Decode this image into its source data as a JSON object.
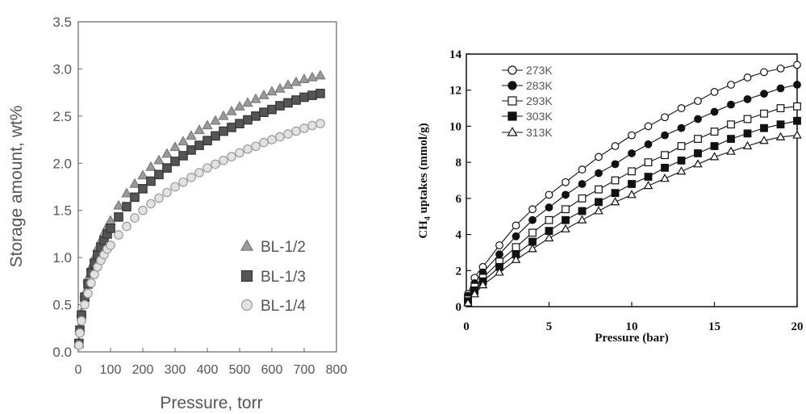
{
  "chart_data": [
    {
      "type": "scatter",
      "xlabel": "Pressure, torr",
      "ylabel": "Storage amount, wt%",
      "xlim": [
        0,
        800
      ],
      "ylim": [
        0.0,
        3.5
      ],
      "x_ticks": [
        "0",
        "100",
        "200",
        "300",
        "400",
        "500",
        "600",
        "700",
        "800"
      ],
      "y_ticks": [
        "0.0",
        "0.5",
        "1.0",
        "1.5",
        "2.0",
        "2.5",
        "3.0",
        "3.5"
      ],
      "legend_position": "bottom-right",
      "grid": false,
      "series": [
        {
          "name": "BL-1/2",
          "marker": "triangle",
          "color": "#9a9a9a",
          "points": [
            [
              2,
              0.1
            ],
            [
              5,
              0.25
            ],
            [
              10,
              0.42
            ],
            [
              20,
              0.62
            ],
            [
              30,
              0.78
            ],
            [
              40,
              0.9
            ],
            [
              50,
              1.0
            ],
            [
              60,
              1.1
            ],
            [
              70,
              1.18
            ],
            [
              80,
              1.26
            ],
            [
              90,
              1.33
            ],
            [
              100,
              1.39
            ],
            [
              125,
              1.55
            ],
            [
              150,
              1.68
            ],
            [
              175,
              1.78
            ],
            [
              200,
              1.87
            ],
            [
              225,
              1.96
            ],
            [
              250,
              2.03
            ],
            [
              275,
              2.1
            ],
            [
              300,
              2.17
            ],
            [
              325,
              2.23
            ],
            [
              350,
              2.29
            ],
            [
              375,
              2.35
            ],
            [
              400,
              2.4
            ],
            [
              425,
              2.45
            ],
            [
              450,
              2.5
            ],
            [
              475,
              2.55
            ],
            [
              500,
              2.6
            ],
            [
              525,
              2.64
            ],
            [
              550,
              2.68
            ],
            [
              575,
              2.72
            ],
            [
              600,
              2.76
            ],
            [
              625,
              2.79
            ],
            [
              650,
              2.83
            ],
            [
              675,
              2.86
            ],
            [
              700,
              2.89
            ],
            [
              725,
              2.91
            ],
            [
              750,
              2.93
            ]
          ]
        },
        {
          "name": "BL-1/3",
          "marker": "square",
          "color": "#555555",
          "points": [
            [
              2,
              0.09
            ],
            [
              5,
              0.23
            ],
            [
              10,
              0.39
            ],
            [
              20,
              0.58
            ],
            [
              30,
              0.72
            ],
            [
              40,
              0.84
            ],
            [
              50,
              0.94
            ],
            [
              60,
              1.03
            ],
            [
              70,
              1.11
            ],
            [
              80,
              1.18
            ],
            [
              90,
              1.25
            ],
            [
              100,
              1.31
            ],
            [
              125,
              1.43
            ],
            [
              150,
              1.54
            ],
            [
              175,
              1.64
            ],
            [
              200,
              1.73
            ],
            [
              225,
              1.81
            ],
            [
              250,
              1.88
            ],
            [
              275,
              1.95
            ],
            [
              300,
              2.02
            ],
            [
              325,
              2.08
            ],
            [
              350,
              2.14
            ],
            [
              375,
              2.19
            ],
            [
              400,
              2.24
            ],
            [
              425,
              2.29
            ],
            [
              450,
              2.34
            ],
            [
              475,
              2.38
            ],
            [
              500,
              2.42
            ],
            [
              525,
              2.46
            ],
            [
              550,
              2.5
            ],
            [
              575,
              2.54
            ],
            [
              600,
              2.57
            ],
            [
              625,
              2.61
            ],
            [
              650,
              2.64
            ],
            [
              675,
              2.67
            ],
            [
              700,
              2.7
            ],
            [
              725,
              2.72
            ],
            [
              750,
              2.74
            ]
          ]
        },
        {
          "name": "BL-1/4",
          "marker": "circle",
          "color": "#e2e2e2",
          "points": [
            [
              2,
              0.07
            ],
            [
              5,
              0.2
            ],
            [
              10,
              0.33
            ],
            [
              20,
              0.5
            ],
            [
              30,
              0.62
            ],
            [
              40,
              0.73
            ],
            [
              50,
              0.82
            ],
            [
              60,
              0.9
            ],
            [
              70,
              0.97
            ],
            [
              80,
              1.03
            ],
            [
              90,
              1.09
            ],
            [
              100,
              1.13
            ],
            [
              125,
              1.24
            ],
            [
              150,
              1.33
            ],
            [
              175,
              1.42
            ],
            [
              200,
              1.5
            ],
            [
              225,
              1.57
            ],
            [
              250,
              1.63
            ],
            [
              275,
              1.69
            ],
            [
              300,
              1.75
            ],
            [
              325,
              1.8
            ],
            [
              350,
              1.85
            ],
            [
              375,
              1.9
            ],
            [
              400,
              1.95
            ],
            [
              425,
              1.99
            ],
            [
              450,
              2.03
            ],
            [
              475,
              2.07
            ],
            [
              500,
              2.11
            ],
            [
              525,
              2.15
            ],
            [
              550,
              2.18
            ],
            [
              575,
              2.22
            ],
            [
              600,
              2.25
            ],
            [
              625,
              2.28
            ],
            [
              650,
              2.31
            ],
            [
              675,
              2.34
            ],
            [
              700,
              2.37
            ],
            [
              725,
              2.4
            ],
            [
              750,
              2.42
            ]
          ]
        }
      ]
    },
    {
      "type": "line",
      "xlabel": "Pressure (bar)",
      "ylabel_main": "CH",
      "ylabel_sub": "4",
      "ylabel_rest": " uptakes (mmol/g)",
      "xlim": [
        0,
        20
      ],
      "ylim": [
        0,
        14
      ],
      "x_ticks": [
        "0",
        "5",
        "10",
        "15",
        "20"
      ],
      "y_ticks": [
        "0",
        "2",
        "4",
        "6",
        "8",
        "10",
        "12",
        "14"
      ],
      "legend_position": "top-left",
      "grid": false,
      "x": [
        0.1,
        0.3,
        0.5,
        0.7,
        1,
        2,
        3,
        4,
        5,
        6,
        7,
        8,
        9,
        10,
        11,
        12,
        13,
        14,
        15,
        16,
        17,
        18,
        19,
        20
      ],
      "series": [
        {
          "name": "273K",
          "marker": "circle-open",
          "values": [
            0.7,
            1.2,
            1.6,
            1.9,
            2.2,
            3.4,
            4.5,
            5.4,
            6.2,
            6.9,
            7.6,
            8.3,
            8.9,
            9.5,
            10.0,
            10.5,
            11.0,
            11.4,
            11.9,
            12.3,
            12.7,
            13.0,
            13.2,
            13.4
          ]
        },
        {
          "name": "283K",
          "marker": "circle-filled",
          "values": [
            0.6,
            1.0,
            1.3,
            1.6,
            1.9,
            2.9,
            3.9,
            4.8,
            5.5,
            6.2,
            6.8,
            7.4,
            7.9,
            8.5,
            9.0,
            9.5,
            9.9,
            10.4,
            10.8,
            11.2,
            11.5,
            11.8,
            12.1,
            12.3
          ]
        },
        {
          "name": "293K",
          "marker": "square-open",
          "values": [
            0.4,
            0.8,
            1.1,
            1.3,
            1.6,
            2.5,
            3.3,
            4.1,
            4.8,
            5.4,
            6.0,
            6.5,
            7.0,
            7.5,
            8.0,
            8.4,
            8.9,
            9.3,
            9.7,
            10.1,
            10.4,
            10.7,
            11.0,
            11.1
          ]
        },
        {
          "name": "303K",
          "marker": "square-filled",
          "values": [
            0.3,
            0.7,
            0.9,
            1.1,
            1.4,
            2.2,
            2.9,
            3.6,
            4.2,
            4.8,
            5.3,
            5.8,
            6.3,
            6.8,
            7.2,
            7.7,
            8.1,
            8.5,
            8.9,
            9.3,
            9.6,
            9.9,
            10.1,
            10.3
          ]
        },
        {
          "name": "313K",
          "marker": "triangle-open",
          "values": [
            0.2,
            0.5,
            0.7,
            0.9,
            1.2,
            1.9,
            2.6,
            3.2,
            3.8,
            4.3,
            4.8,
            5.3,
            5.8,
            6.2,
            6.7,
            7.1,
            7.5,
            7.9,
            8.3,
            8.6,
            8.9,
            9.2,
            9.4,
            9.5
          ]
        }
      ]
    }
  ]
}
